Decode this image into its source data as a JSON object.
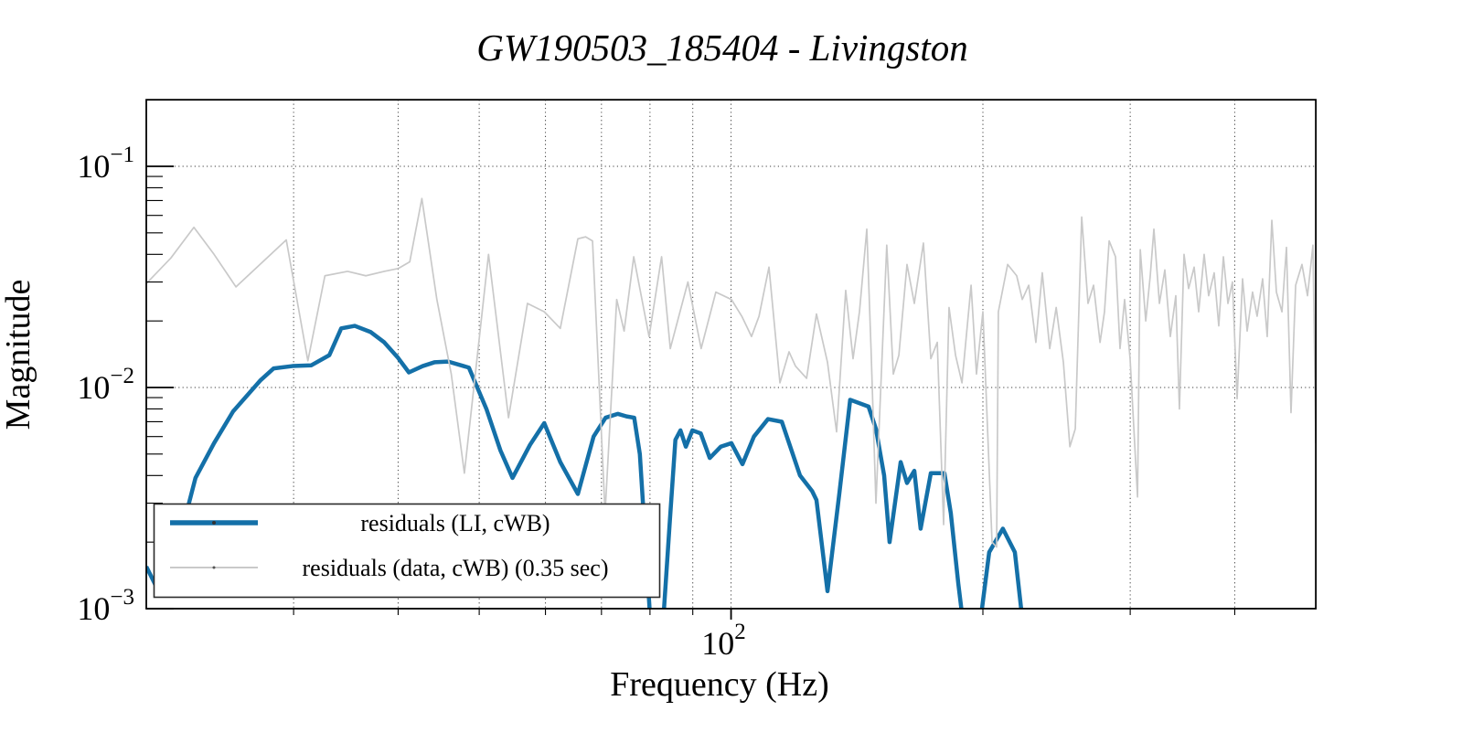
{
  "title": "GW190503_185404 - Livingston",
  "axes": {
    "xlabel": "Frequency (Hz)",
    "ylabel": "Magnitude",
    "x_scale": "log",
    "y_scale": "log",
    "x_tick_labels": [
      {
        "base": "10",
        "exp": "2",
        "value": 100
      }
    ],
    "y_tick_labels": [
      {
        "base": "10",
        "exp": "−1",
        "value": 0.1
      },
      {
        "base": "10",
        "exp": "−2",
        "value": 0.01
      },
      {
        "base": "10",
        "exp": "−3",
        "value": 0.001
      }
    ],
    "x_minor_ticks": [
      30,
      40,
      50,
      60,
      70,
      80,
      90,
      200,
      300,
      400
    ],
    "y_minor_ticks": [
      0.002,
      0.003,
      0.004,
      0.005,
      0.006,
      0.007,
      0.008,
      0.009,
      0.02,
      0.03,
      0.04,
      0.05,
      0.06,
      0.07,
      0.08,
      0.09
    ]
  },
  "grid": {
    "x_values": [
      30,
      40,
      50,
      60,
      70,
      80,
      90,
      100,
      200,
      300,
      400
    ],
    "y_values": [
      0.1,
      0.01
    ],
    "style": "dotted",
    "color": "#3d3d3d"
  },
  "legend": {
    "position": "lower left",
    "entries": [
      {
        "label": "residuals (LI, cWB)",
        "color": "#1470a8",
        "line_width": 5.5
      },
      {
        "label": "residuals (data, cWB) (0.35 sec)",
        "color": "#c9c9c9",
        "line_width": 2
      }
    ]
  },
  "chart_data": {
    "type": "line",
    "title": "GW190503_185404 - Livingston",
    "xlabel": "Frequency (Hz)",
    "ylabel": "Magnitude",
    "x_scale": "log",
    "y_scale": "log",
    "xlim": [
      20,
      500
    ],
    "ylim": [
      0.001,
      0.2
    ],
    "grid": true,
    "legend_position": "lower left",
    "series": [
      {
        "name": "residuals (LI, cWB)",
        "color": "#1470a8",
        "line_width": 4.5,
        "points": [
          [
            20,
            0.00155
          ],
          [
            20.8,
            0.00115
          ],
          [
            21.8,
            0.0019
          ],
          [
            22.9,
            0.0039
          ],
          [
            24.1,
            0.0056
          ],
          [
            25.4,
            0.0078
          ],
          [
            27.4,
            0.0108
          ],
          [
            28.4,
            0.0122
          ],
          [
            29.9,
            0.0125
          ],
          [
            31.5,
            0.0126
          ],
          [
            33.1,
            0.014
          ],
          [
            34.2,
            0.0185
          ],
          [
            35.5,
            0.019
          ],
          [
            37.1,
            0.0178
          ],
          [
            38.5,
            0.016
          ],
          [
            40,
            0.0136
          ],
          [
            41.2,
            0.0117
          ],
          [
            42.8,
            0.0125
          ],
          [
            44.2,
            0.013
          ],
          [
            45.9,
            0.0131
          ],
          [
            48.6,
            0.0123
          ],
          [
            51,
            0.008
          ],
          [
            53,
            0.0052
          ],
          [
            54.8,
            0.0039
          ],
          [
            57.5,
            0.0055
          ],
          [
            59.8,
            0.0069
          ],
          [
            62.5,
            0.0046
          ],
          [
            65.6,
            0.0033
          ],
          [
            68.5,
            0.006
          ],
          [
            70.8,
            0.0073
          ],
          [
            73.2,
            0.0076
          ],
          [
            75,
            0.0074
          ],
          [
            76.6,
            0.0073
          ],
          [
            77.8,
            0.005
          ],
          [
            79.3,
            0.0016
          ],
          [
            80.2,
            0.0008
          ],
          [
            83,
            0.0009
          ],
          [
            84.5,
            0.0025
          ],
          [
            85.8,
            0.0058
          ],
          [
            87,
            0.0064
          ],
          [
            88.3,
            0.0054
          ],
          [
            89.9,
            0.0064
          ],
          [
            92,
            0.0062
          ],
          [
            94.3,
            0.0048
          ],
          [
            97.2,
            0.0054
          ],
          [
            100.1,
            0.0056
          ],
          [
            103.2,
            0.0045
          ],
          [
            106.5,
            0.006
          ],
          [
            110.7,
            0.0072
          ],
          [
            115,
            0.007
          ],
          [
            120.9,
            0.004
          ],
          [
            125,
            0.0034
          ],
          [
            126.5,
            0.0031
          ],
          [
            130.4,
            0.0012
          ],
          [
            134.7,
            0.0033
          ],
          [
            138.8,
            0.0088
          ],
          [
            146,
            0.0082
          ],
          [
            149,
            0.0065
          ],
          [
            152.4,
            0.004
          ],
          [
            154.7,
            0.002
          ],
          [
            159.5,
            0.0046
          ],
          [
            162.3,
            0.0037
          ],
          [
            165.6,
            0.0042
          ],
          [
            168.5,
            0.0023
          ],
          [
            173.3,
            0.0041
          ],
          [
            179.9,
            0.0041
          ],
          [
            183.1,
            0.0027
          ],
          [
            186.9,
            0.0013
          ],
          [
            188.8,
            0.00095
          ],
          [
            193,
            0.0008
          ],
          [
            198,
            0.0008
          ],
          [
            203.5,
            0.0018
          ],
          [
            211.3,
            0.0023
          ],
          [
            218.4,
            0.0018
          ],
          [
            222.2,
            0.001
          ],
          [
            224,
            0.0008
          ]
        ]
      },
      {
        "name": "residuals (data, cWB) (0.35 sec)",
        "color": "#c9c9c9",
        "line_width": 1.7,
        "points": [
          [
            20,
            0.0295
          ],
          [
            21.4,
            0.0385
          ],
          [
            22.8,
            0.053
          ],
          [
            24.1,
            0.04
          ],
          [
            25.6,
            0.0285
          ],
          [
            29.4,
            0.0465
          ],
          [
            31.2,
            0.0132
          ],
          [
            32.7,
            0.032
          ],
          [
            34.8,
            0.0335
          ],
          [
            36.6,
            0.032
          ],
          [
            38.5,
            0.0335
          ],
          [
            40,
            0.0345
          ],
          [
            41.3,
            0.037
          ],
          [
            42.7,
            0.0715
          ],
          [
            44.5,
            0.025
          ],
          [
            46.3,
            0.0115
          ],
          [
            48,
            0.0041
          ],
          [
            51.3,
            0.04
          ],
          [
            54.2,
            0.0073
          ],
          [
            57.1,
            0.024
          ],
          [
            59.8,
            0.022
          ],
          [
            62.5,
            0.0185
          ],
          [
            65.6,
            0.047
          ],
          [
            67,
            0.048
          ],
          [
            68.3,
            0.046
          ],
          [
            70.7,
            0.0027
          ],
          [
            73,
            0.025
          ],
          [
            74.5,
            0.018
          ],
          [
            76.5,
            0.039
          ],
          [
            79.8,
            0.017
          ],
          [
            82.6,
            0.039
          ],
          [
            84.6,
            0.015
          ],
          [
            88.8,
            0.03
          ],
          [
            92.1,
            0.015
          ],
          [
            95.9,
            0.027
          ],
          [
            100.1,
            0.025
          ],
          [
            103,
            0.021
          ],
          [
            105.8,
            0.017
          ],
          [
            108,
            0.021
          ],
          [
            111,
            0.035
          ],
          [
            114.4,
            0.0105
          ],
          [
            117.3,
            0.0145
          ],
          [
            119.4,
            0.0125
          ],
          [
            123.1,
            0.011
          ],
          [
            126.5,
            0.0215
          ],
          [
            130.4,
            0.013
          ],
          [
            133.7,
            0.0063
          ],
          [
            137.1,
            0.0275
          ],
          [
            139.9,
            0.0135
          ],
          [
            142.4,
            0.022
          ],
          [
            145.3,
            0.052
          ],
          [
            147,
            0.015
          ],
          [
            149,
            0.003
          ],
          [
            153.5,
            0.044
          ],
          [
            156.3,
            0.0115
          ],
          [
            158.7,
            0.014
          ],
          [
            162.3,
            0.036
          ],
          [
            165.6,
            0.024
          ],
          [
            169.8,
            0.045
          ],
          [
            173.3,
            0.0135
          ],
          [
            176.4,
            0.016
          ],
          [
            179.5,
            0.0024
          ],
          [
            182.2,
            0.023
          ],
          [
            185.5,
            0.014
          ],
          [
            188.8,
            0.0105
          ],
          [
            193.6,
            0.029
          ],
          [
            196.5,
            0.0115
          ],
          [
            200,
            0.022
          ],
          [
            205.1,
            0.002
          ],
          [
            207.7,
            0.0019
          ],
          [
            208.7,
            0.022
          ],
          [
            214.1,
            0.036
          ],
          [
            219.5,
            0.032
          ],
          [
            222.9,
            0.025
          ],
          [
            226.9,
            0.029
          ],
          [
            231.4,
            0.016
          ],
          [
            235.5,
            0.033
          ],
          [
            240.4,
            0.015
          ],
          [
            244.7,
            0.023
          ],
          [
            249.6,
            0.013
          ],
          [
            254.1,
            0.0054
          ],
          [
            257.9,
            0.0065
          ],
          [
            262.5,
            0.059
          ],
          [
            267.1,
            0.024
          ],
          [
            271.2,
            0.029
          ],
          [
            276.1,
            0.016
          ],
          [
            279.5,
            0.022
          ],
          [
            283.1,
            0.046
          ],
          [
            288.1,
            0.039
          ],
          [
            291.7,
            0.015
          ],
          [
            295.4,
            0.025
          ],
          [
            299.9,
            0.0135
          ],
          [
            306.1,
            0.0032
          ],
          [
            308.4,
            0.042
          ],
          [
            313.1,
            0.02
          ],
          [
            317,
            0.032
          ],
          [
            320.2,
            0.052
          ],
          [
            325.1,
            0.024
          ],
          [
            330,
            0.034
          ],
          [
            335,
            0.017
          ],
          [
            340.1,
            0.026
          ],
          [
            343.5,
            0.008
          ],
          [
            347.9,
            0.04
          ],
          [
            352.3,
            0.028
          ],
          [
            357.7,
            0.035
          ],
          [
            362.2,
            0.022
          ],
          [
            367.7,
            0.04
          ],
          [
            372.3,
            0.026
          ],
          [
            378,
            0.033
          ],
          [
            382.8,
            0.019
          ],
          [
            387.7,
            0.039
          ],
          [
            392.6,
            0.024
          ],
          [
            397.5,
            0.03
          ],
          [
            402.6,
            0.0089
          ],
          [
            408.7,
            0.031
          ],
          [
            413.9,
            0.018
          ],
          [
            420.1,
            0.027
          ],
          [
            425.4,
            0.021
          ],
          [
            431.9,
            0.031
          ],
          [
            437.4,
            0.017
          ],
          [
            443,
            0.057
          ],
          [
            448.6,
            0.027
          ],
          [
            455.5,
            0.022
          ],
          [
            461.2,
            0.043
          ],
          [
            467,
            0.0077
          ],
          [
            473,
            0.029
          ],
          [
            481.3,
            0.036
          ],
          [
            488.7,
            0.026
          ],
          [
            496.1,
            0.044
          ],
          [
            500,
            0.0056
          ]
        ]
      }
    ]
  }
}
